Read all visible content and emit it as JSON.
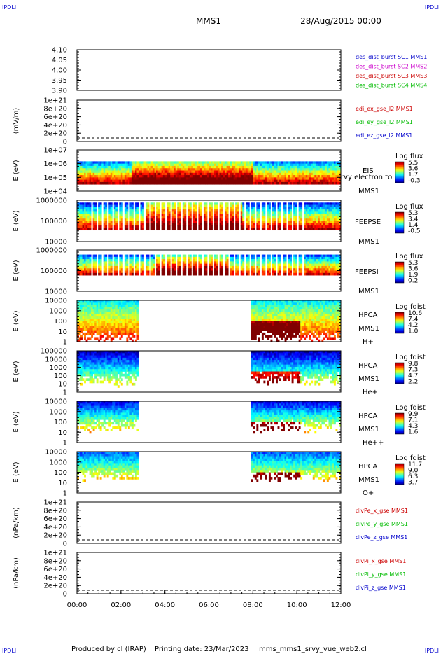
{
  "header": {
    "corner_label": "IPDLI",
    "title": "MMS1",
    "date": "28/Aug/2015 00:00"
  },
  "footer": {
    "produced_by": "Produced by cl (IRAP)",
    "printing_date": "Printing date: 23/Mar/2023",
    "filename": "mms_mms1_srvy_vue_web2.cl"
  },
  "time_axis": {
    "ticks": [
      "00:00",
      "02:00",
      "04:00",
      "06:00",
      "08:00",
      "10:00",
      "12:00"
    ],
    "range_hours": [
      0,
      12
    ]
  },
  "colors": {
    "blue": "#0000cc",
    "magenta": "#cc00cc",
    "red": "#cc0000",
    "green": "#00bb00",
    "black": "#000000"
  },
  "chart_data": [
    {
      "id": "p1",
      "type": "line",
      "ylabel": "",
      "yticks": [
        "4.10",
        "4.05",
        "4.00",
        "3.95",
        "3.90"
      ],
      "ylim": [
        3.9,
        4.1
      ],
      "series": [
        {
          "name": "des_dist_burst SC1 MMS1",
          "color": "blue",
          "values": []
        },
        {
          "name": "des_dist_burst SC2 MMS2",
          "color": "magenta",
          "values": []
        },
        {
          "name": "des_dist_burst SC3 MMS3",
          "color": "red",
          "values": []
        },
        {
          "name": "des_dist_burst SC4 MMS4",
          "color": "green",
          "values": []
        }
      ]
    },
    {
      "id": "p2",
      "type": "line",
      "ylabel": "(mV/m)",
      "yticks": [
        "1e+21",
        "8e+20",
        "6e+20",
        "4e+20",
        "2e+20",
        "0"
      ],
      "series": [
        {
          "name": "edi_ex_gse_l2 MMS1",
          "color": "red",
          "values": []
        },
        {
          "name": "edi_ey_gse_l2 MMS1",
          "color": "green",
          "values": []
        },
        {
          "name": "edi_ez_gse_l2 MMS1",
          "color": "blue",
          "values": []
        }
      ]
    },
    {
      "id": "p3",
      "type": "heatmap",
      "ylabel": "E (eV)",
      "yticks": [
        "1e+07",
        "1e+06",
        "1e+05",
        "1e+04"
      ],
      "labels": [
        "EIS",
        "rvy electron to",
        "MMS1"
      ],
      "colorbar": {
        "title": "Log flux",
        "ticks": [
          "5.5",
          "3.6",
          "1.7",
          "-0.3"
        ]
      }
    },
    {
      "id": "p4",
      "type": "heatmap",
      "ylabel": "E (eV)",
      "yticks": [
        "1000000",
        "100000",
        "10000"
      ],
      "labels": [
        "FEEPSE",
        "MMS1"
      ],
      "colorbar": {
        "title": "Log flux",
        "ticks": [
          "5.3",
          "3.4",
          "1.4",
          "-0.5"
        ]
      }
    },
    {
      "id": "p5",
      "type": "heatmap",
      "ylabel": "E (eV)",
      "yticks": [
        "1000000",
        "100000",
        "10000"
      ],
      "labels": [
        "FEEPSI",
        "MMS1"
      ],
      "colorbar": {
        "title": "Log flux",
        "ticks": [
          "5.3",
          "3.6",
          "1.9",
          "0.2"
        ]
      }
    },
    {
      "id": "p6",
      "type": "heatmap",
      "ylabel": "E (eV)",
      "yticks": [
        "10000",
        "1000",
        "100",
        "10",
        "1"
      ],
      "labels": [
        "HPCA",
        "MMS1",
        "H+"
      ],
      "colorbar": {
        "title": "Log fdist",
        "ticks": [
          "10.6",
          "7.4",
          "4.2",
          "1.0"
        ]
      }
    },
    {
      "id": "p7",
      "type": "heatmap",
      "ylabel": "E (eV)",
      "yticks": [
        "100000",
        "10000",
        "1000",
        "100",
        "10",
        "1"
      ],
      "labels": [
        "HPCA",
        "MMS1",
        "He+"
      ],
      "colorbar": {
        "title": "Log fdist",
        "ticks": [
          "9.8",
          "7.3",
          "4.7",
          "2.2"
        ]
      }
    },
    {
      "id": "p8",
      "type": "heatmap",
      "ylabel": "E (eV)",
      "yticks": [
        "10000",
        "1000",
        "100",
        "10",
        "1"
      ],
      "labels": [
        "HPCA",
        "MMS1",
        "He++"
      ],
      "colorbar": {
        "title": "Log fdist",
        "ticks": [
          "9.9",
          "7.1",
          "4.3",
          "1.6"
        ]
      }
    },
    {
      "id": "p9",
      "type": "heatmap",
      "ylabel": "E (eV)",
      "yticks": [
        "10000",
        "1000",
        "100",
        "10",
        "1"
      ],
      "labels": [
        "HPCA",
        "MMS1",
        "O+"
      ],
      "colorbar": {
        "title": "Log fdist",
        "ticks": [
          "11.7",
          "9.0",
          "6.3",
          "3.7"
        ]
      }
    },
    {
      "id": "p10",
      "type": "line",
      "ylabel": "(nPa/km)",
      "yticks": [
        "1e+21",
        "8e+20",
        "6e+20",
        "4e+20",
        "2e+20",
        "0"
      ],
      "series": [
        {
          "name": "divPe_x_gse MMS1",
          "color": "red",
          "values": []
        },
        {
          "name": "divPe_y_gse MMS1",
          "color": "green",
          "values": []
        },
        {
          "name": "divPe_z_gse MMS1",
          "color": "blue",
          "values": []
        }
      ]
    },
    {
      "id": "p11",
      "type": "line",
      "ylabel": "(nPa/km)",
      "yticks": [
        "1e+21",
        "8e+20",
        "6e+20",
        "4e+20",
        "2e+20",
        "0"
      ],
      "series": [
        {
          "name": "divPi_x_gse MMS1",
          "color": "red",
          "values": []
        },
        {
          "name": "divPi_y_gse MMS1",
          "color": "green",
          "values": []
        },
        {
          "name": "divPi_z_gse MMS1",
          "color": "blue",
          "values": []
        }
      ]
    }
  ]
}
